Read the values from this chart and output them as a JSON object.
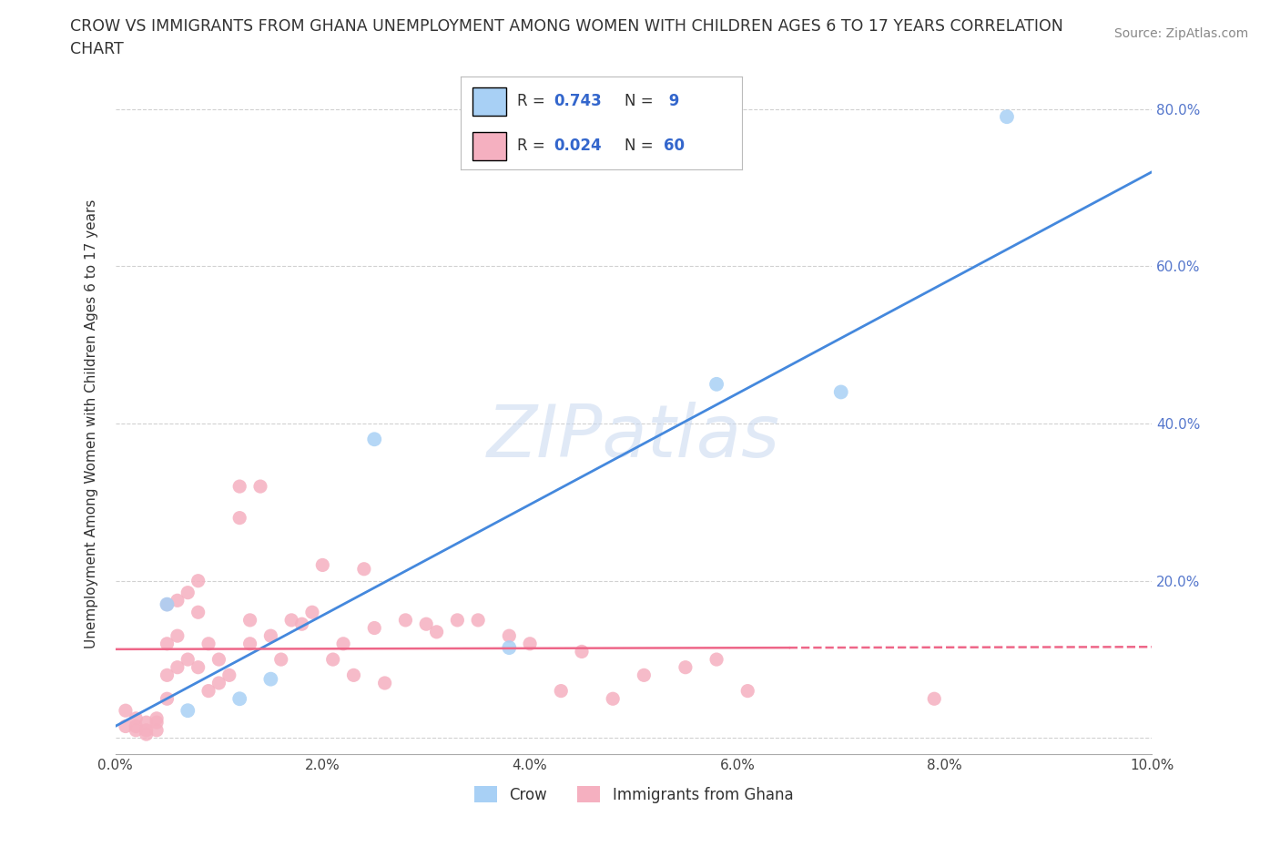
{
  "title_line1": "CROW VS IMMIGRANTS FROM GHANA UNEMPLOYMENT AMONG WOMEN WITH CHILDREN AGES 6 TO 17 YEARS CORRELATION",
  "title_line2": "CHART",
  "source_text": "Source: ZipAtlas.com",
  "crow_color": "#A8D0F5",
  "ghana_color": "#F5B0C0",
  "crow_line_color": "#4488DD",
  "ghana_line_color": "#EE6688",
  "crow_R": 0.743,
  "crow_N": 9,
  "ghana_R": 0.024,
  "ghana_N": 60,
  "ylabel": "Unemployment Among Women with Children Ages 6 to 17 years",
  "xlim": [
    0.0,
    0.1
  ],
  "ylim": [
    -0.02,
    0.82
  ],
  "xticks": [
    0.0,
    0.02,
    0.04,
    0.06,
    0.08,
    0.1
  ],
  "yticks": [
    0.0,
    0.2,
    0.4,
    0.6,
    0.8
  ],
  "xtick_labels": [
    "0.0%",
    "2.0%",
    "4.0%",
    "6.0%",
    "8.0%",
    "10.0%"
  ],
  "ytick_labels_right": [
    "80.0%",
    "60.0%",
    "40.0%",
    "20.0%"
  ],
  "watermark": "ZIPatlas",
  "crow_x": [
    0.005,
    0.007,
    0.012,
    0.015,
    0.025,
    0.038,
    0.058,
    0.07,
    0.086
  ],
  "crow_y": [
    0.17,
    0.035,
    0.05,
    0.075,
    0.38,
    0.115,
    0.45,
    0.44,
    0.79
  ],
  "ghana_x": [
    0.001,
    0.001,
    0.002,
    0.002,
    0.002,
    0.003,
    0.003,
    0.003,
    0.004,
    0.004,
    0.004,
    0.005,
    0.005,
    0.005,
    0.005,
    0.006,
    0.006,
    0.006,
    0.007,
    0.007,
    0.008,
    0.008,
    0.008,
    0.009,
    0.009,
    0.01,
    0.01,
    0.011,
    0.012,
    0.012,
    0.013,
    0.013,
    0.014,
    0.015,
    0.016,
    0.017,
    0.018,
    0.019,
    0.02,
    0.021,
    0.022,
    0.023,
    0.024,
    0.025,
    0.026,
    0.028,
    0.03,
    0.031,
    0.033,
    0.035,
    0.038,
    0.04,
    0.043,
    0.045,
    0.048,
    0.051,
    0.055,
    0.058,
    0.061,
    0.079
  ],
  "ghana_y": [
    0.035,
    0.015,
    0.01,
    0.025,
    0.015,
    0.005,
    0.01,
    0.02,
    0.01,
    0.02,
    0.025,
    0.17,
    0.12,
    0.08,
    0.05,
    0.175,
    0.13,
    0.09,
    0.185,
    0.1,
    0.2,
    0.16,
    0.09,
    0.12,
    0.06,
    0.1,
    0.07,
    0.08,
    0.32,
    0.28,
    0.15,
    0.12,
    0.32,
    0.13,
    0.1,
    0.15,
    0.145,
    0.16,
    0.22,
    0.1,
    0.12,
    0.08,
    0.215,
    0.14,
    0.07,
    0.15,
    0.145,
    0.135,
    0.15,
    0.15,
    0.13,
    0.12,
    0.06,
    0.11,
    0.05,
    0.08,
    0.09,
    0.1,
    0.06,
    0.05
  ],
  "background_color": "#ffffff",
  "grid_color": "#cccccc"
}
